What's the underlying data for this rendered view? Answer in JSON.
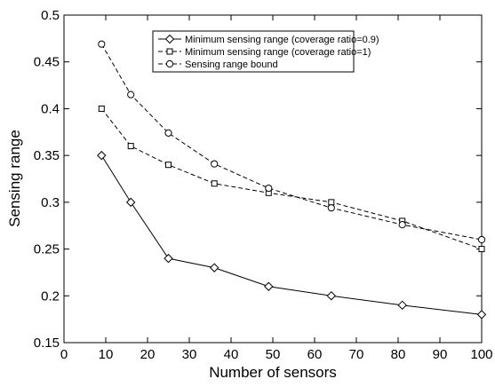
{
  "chart_data": {
    "type": "line",
    "title": "",
    "xlabel": "Number of sensors",
    "ylabel": "Sensing range",
    "xlim": [
      0,
      100
    ],
    "ylim": [
      0.15,
      0.5
    ],
    "xticks": [
      0,
      10,
      20,
      30,
      40,
      50,
      60,
      70,
      80,
      90,
      100
    ],
    "yticks": [
      0.15,
      0.2,
      0.25,
      0.3,
      0.35,
      0.4,
      0.45,
      0.5
    ],
    "xtick_labels": [
      "0",
      "10",
      "20",
      "30",
      "40",
      "50",
      "60",
      "70",
      "80",
      "90",
      "100"
    ],
    "ytick_labels": [
      "0.15",
      "0.2",
      "0.25",
      "0.3",
      "0.35",
      "0.4",
      "0.45",
      "0.5"
    ],
    "grid": false,
    "legend_position": "top-center",
    "series": [
      {
        "name": "Minimum sensing range (coverage ratio=0.9)",
        "marker": "diamond",
        "line": "solid",
        "color": "#000000",
        "x": [
          9,
          16,
          25,
          36,
          49,
          64,
          81,
          100
        ],
        "y": [
          0.35,
          0.3,
          0.24,
          0.23,
          0.21,
          0.2,
          0.19,
          0.18
        ]
      },
      {
        "name": "Minimum sensing range (coverage ratio=1)",
        "marker": "square",
        "line": "dashed",
        "color": "#000000",
        "x": [
          9,
          16,
          25,
          36,
          49,
          64,
          81,
          100
        ],
        "y": [
          0.4,
          0.36,
          0.34,
          0.32,
          0.31,
          0.3,
          0.28,
          0.25
        ]
      },
      {
        "name": "Sensing range bound",
        "marker": "circle",
        "line": "dashed",
        "color": "#000000",
        "x": [
          9,
          16,
          25,
          36,
          49,
          64,
          81,
          100
        ],
        "y": [
          0.469,
          0.415,
          0.374,
          0.341,
          0.315,
          0.294,
          0.276,
          0.26
        ]
      }
    ]
  }
}
